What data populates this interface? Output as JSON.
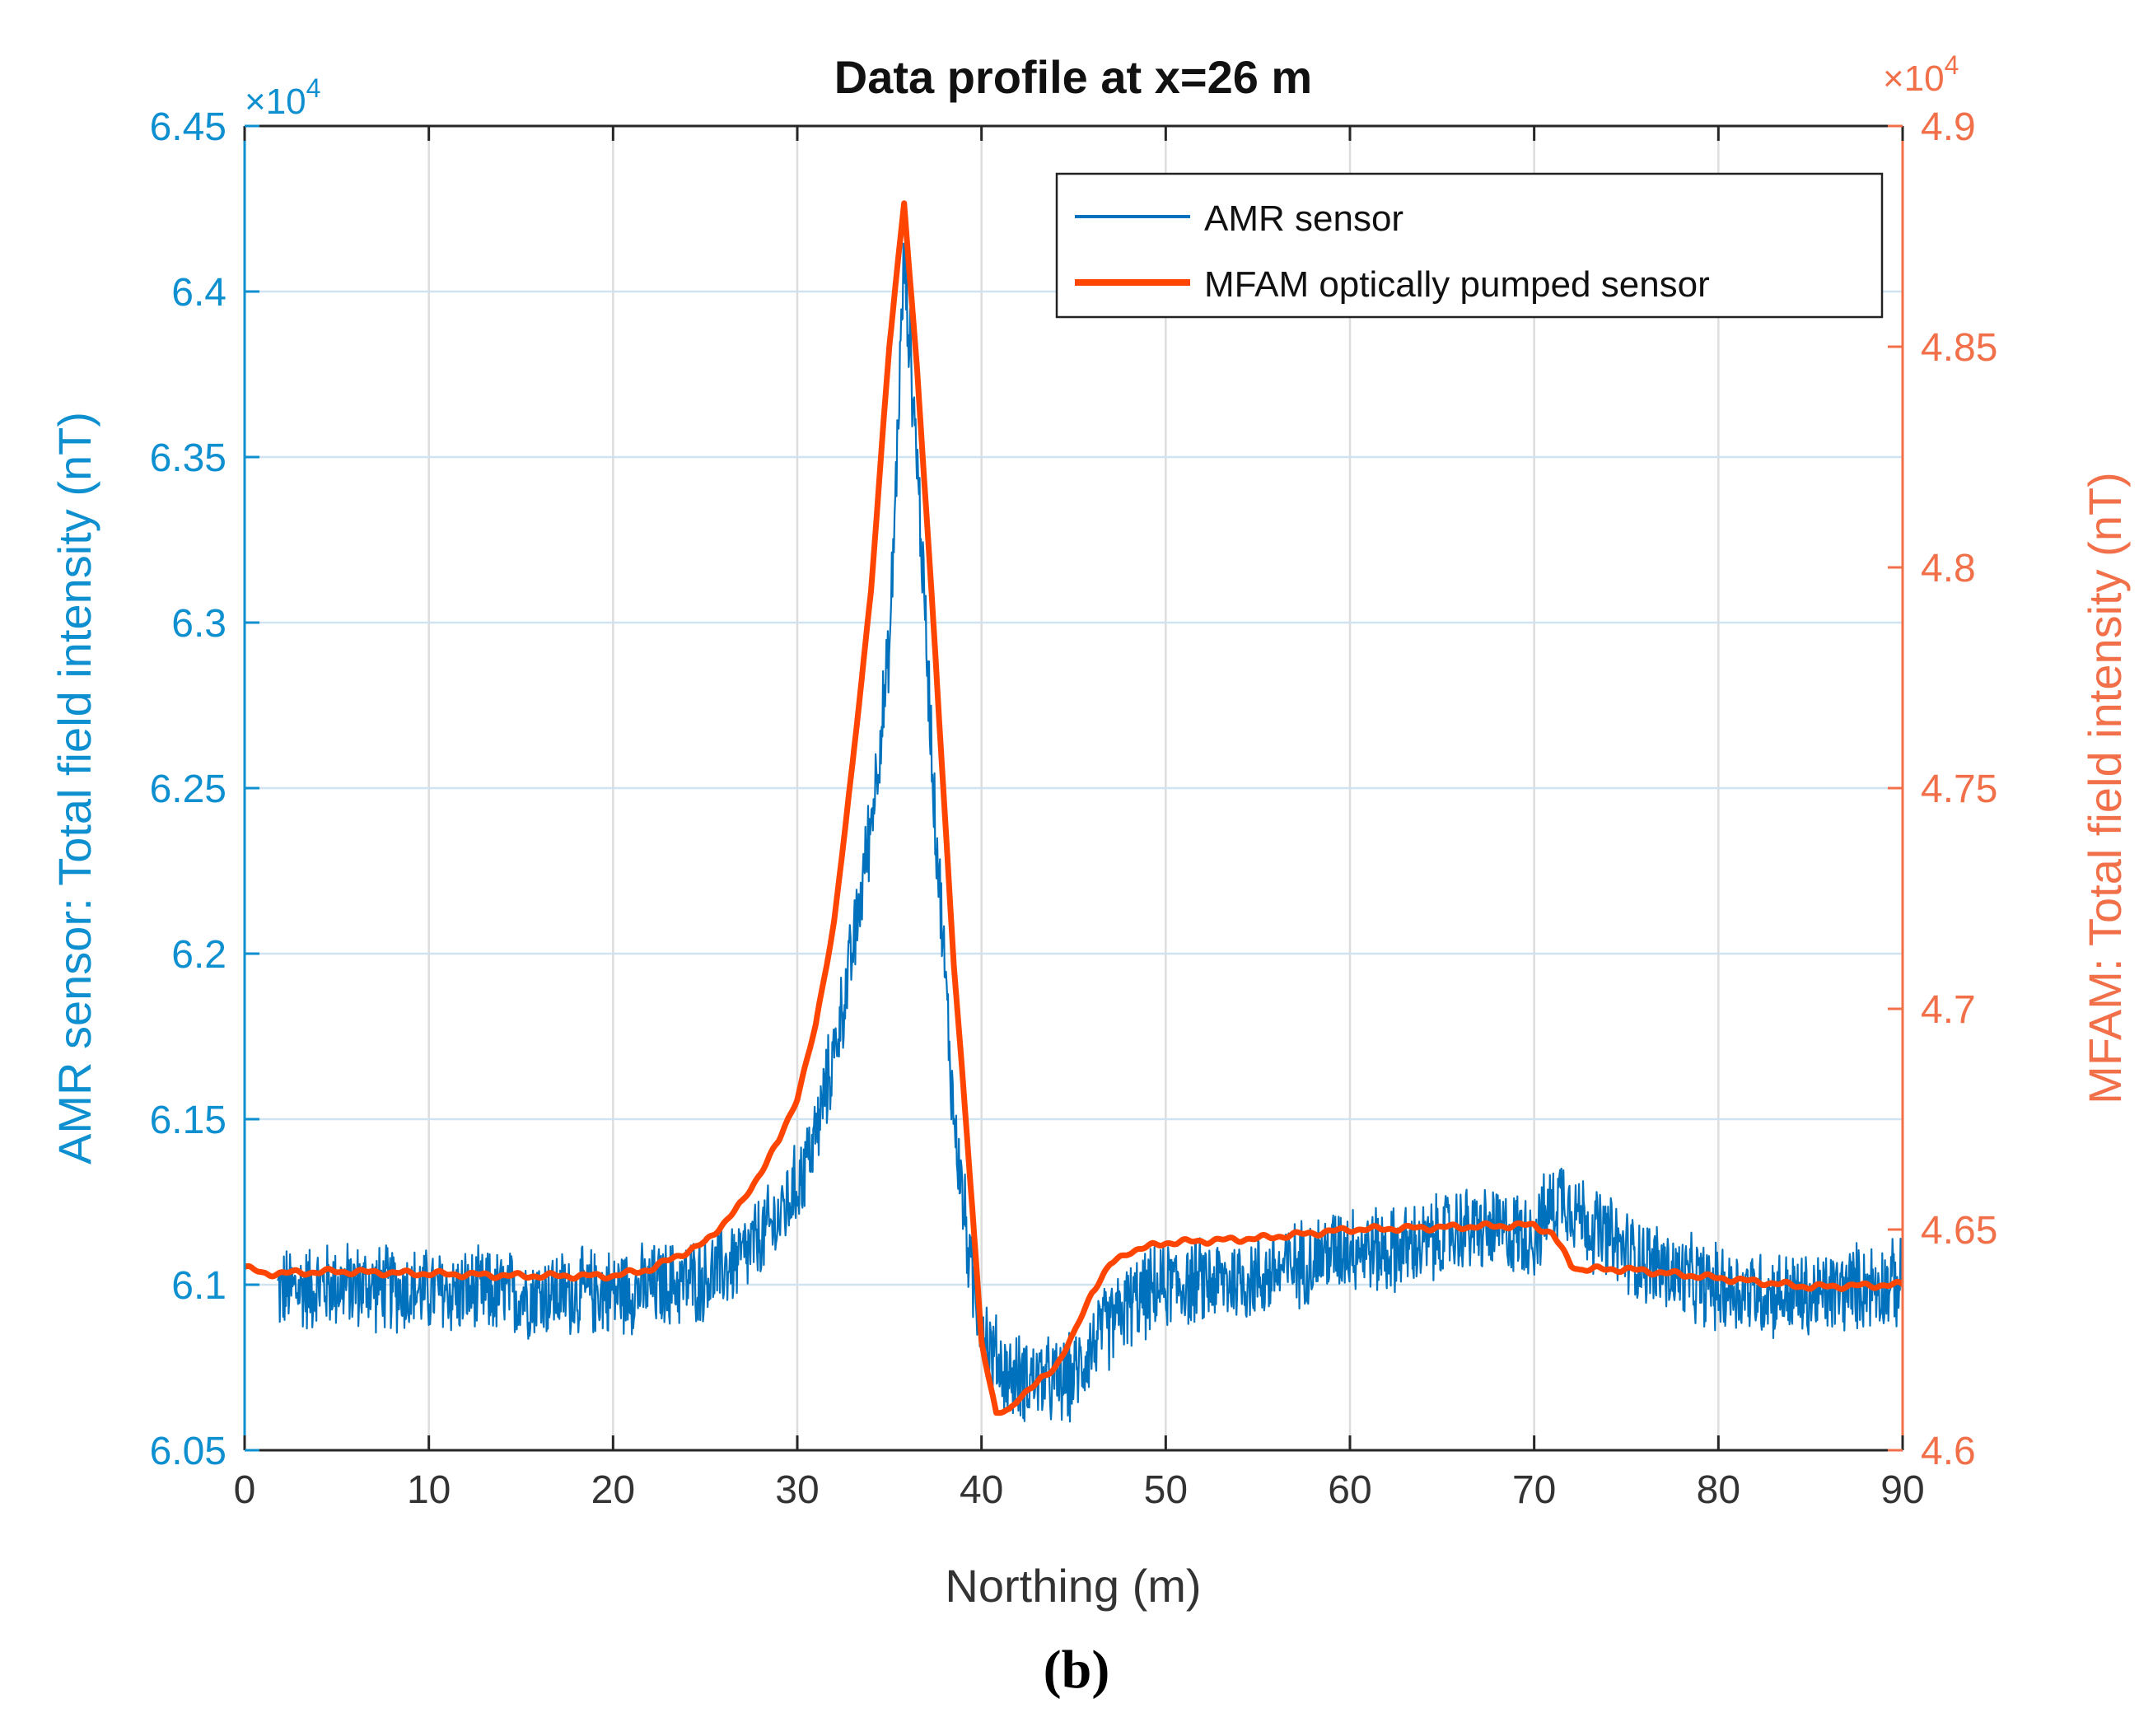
{
  "chart_data": {
    "type": "line",
    "title": "Data profile at x=26 m",
    "xlabel": "Northing (m)",
    "ylabel_left": "AMR sensor: Total field intensity (nT)",
    "ylabel_right": "MFAM: Total field intensity (nT)",
    "xlim": [
      0,
      90
    ],
    "ylim_left": [
      60500,
      64500
    ],
    "ylim_right": [
      46000,
      49000
    ],
    "x_ticks": [
      "0",
      "10",
      "20",
      "30",
      "40",
      "50",
      "60",
      "70",
      "80",
      "90"
    ],
    "y_left_ticks": [
      "6.05",
      "6.1",
      "6.15",
      "6.2",
      "6.25",
      "6.3",
      "6.35",
      "6.4",
      "6.45"
    ],
    "y_right_ticks": [
      "4.6",
      "4.65",
      "4.7",
      "4.75",
      "4.8",
      "4.85",
      "4.9"
    ],
    "y_left_exponent": {
      "base": "×10",
      "exp": "4"
    },
    "y_right_exponent": {
      "base": "×10",
      "exp": "4"
    },
    "grid": true,
    "legend_position": "top-right",
    "colors": {
      "amr": "#0072BD",
      "mfam": "#FF4500",
      "left_axis": "#0E8FCF",
      "right_axis": "#F27049",
      "grid": "#DDDDDD",
      "amr_grid": "#CFE3F1"
    },
    "series": [
      {
        "name": "AMR sensor",
        "axis": "left",
        "noise_amplitude": 150,
        "x": [
          1.8,
          5,
          10,
          15,
          20,
          22,
          25,
          27,
          29,
          30,
          31,
          32,
          33,
          34,
          35,
          35.8,
          36.5,
          37.5,
          38.5,
          39.5,
          40.5,
          41.5,
          43,
          44,
          45,
          46,
          48,
          50,
          55,
          58,
          60,
          62,
          64,
          66,
          68,
          70,
          71.5,
          73,
          75,
          78,
          80,
          82,
          85,
          88,
          90
        ],
        "values": [
          60980,
          61000,
          60980,
          60970,
          60980,
          60990,
          61020,
          61080,
          61200,
          61300,
          61450,
          61700,
          62000,
          62400,
          62900,
          64100,
          63500,
          62400,
          61500,
          61000,
          60800,
          60720,
          60720,
          60700,
          60720,
          60820,
          60940,
          61000,
          61020,
          61080,
          61120,
          61100,
          61120,
          61170,
          61160,
          61150,
          61280,
          61180,
          61100,
          61020,
          60990,
          60980,
          60960,
          61000,
          61000
        ]
      },
      {
        "name": "MFAM optically pumped sensor",
        "axis": "right",
        "noise_amplitude": 0,
        "x": [
          0,
          1,
          5,
          10,
          15,
          20,
          22,
          25,
          27,
          29,
          30,
          31,
          32,
          33,
          34,
          35,
          35.8,
          36.5,
          37.5,
          38.5,
          39.5,
          40,
          40.8,
          41.5,
          42,
          43,
          44,
          45,
          46,
          47,
          48,
          50,
          55,
          60,
          65,
          70,
          71,
          72,
          72.5,
          75,
          80,
          85,
          90
        ],
        "values": [
          46415,
          46400,
          46405,
          46400,
          46395,
          46395,
          46410,
          46470,
          46560,
          46700,
          46800,
          46960,
          47200,
          47550,
          47950,
          48500,
          48830,
          48450,
          47800,
          47100,
          46550,
          46250,
          46080,
          46090,
          46120,
          46150,
          46190,
          46260,
          46360,
          46420,
          46450,
          46470,
          46480,
          46500,
          46505,
          46510,
          46490,
          46420,
          46410,
          46410,
          46390,
          46370,
          46375
        ]
      }
    ]
  },
  "caption": "(b)"
}
